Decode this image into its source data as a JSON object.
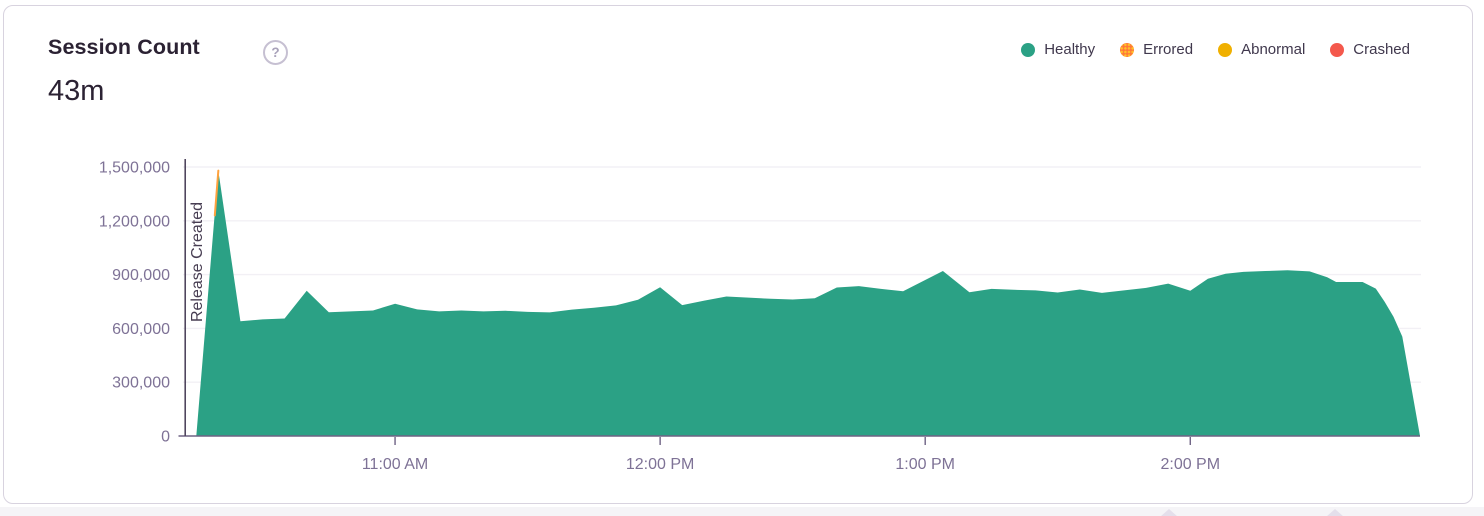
{
  "header": {
    "title": "Session Count",
    "help_label": "?",
    "value": "43m"
  },
  "legend": {
    "items": [
      {
        "label": "Healthy",
        "color": "#2BA185",
        "pattern": "solid"
      },
      {
        "label": "Errored",
        "color": "#FF7738",
        "pattern": "dotted",
        "pattern_dot_color": "#FFC227"
      },
      {
        "label": "Abnormal",
        "color": "#F0B000",
        "pattern": "solid"
      },
      {
        "label": "Crashed",
        "color": "#F4584C",
        "pattern": "solid"
      }
    ]
  },
  "chart_data": {
    "type": "area",
    "title": "Session Count",
    "total": "43m",
    "unit": "sessions",
    "grid": true,
    "legend_position": "top-right",
    "ylim": [
      0,
      1500000
    ],
    "xlim_minutes_after_10am": [
      12,
      292
    ],
    "y_ticks": [
      {
        "value": 0,
        "label": "0"
      },
      {
        "value": 300000,
        "label": "300,000"
      },
      {
        "value": 600000,
        "label": "600,000"
      },
      {
        "value": 900000,
        "label": "900,000"
      },
      {
        "value": 1200000,
        "label": "1,200,000"
      },
      {
        "value": 1500000,
        "label": "1,500,000"
      }
    ],
    "x_ticks": [
      {
        "minutes": 60,
        "label": "11:00 AM"
      },
      {
        "minutes": 120,
        "label": "12:00 PM"
      },
      {
        "minutes": 180,
        "label": "1:00 PM"
      },
      {
        "minutes": 240,
        "label": "2:00 PM"
      }
    ],
    "annotation": {
      "label": "Release Created",
      "minutes": 12.5
    },
    "series": [
      {
        "name": "Healthy",
        "color": "#2BA185",
        "points_min_value": [
          [
            15,
            0
          ],
          [
            20,
            1480000
          ],
          [
            25,
            640000
          ],
          [
            30,
            650000
          ],
          [
            35,
            655000
          ],
          [
            40,
            810000
          ],
          [
            45,
            690000
          ],
          [
            50,
            695000
          ],
          [
            55,
            700000
          ],
          [
            60,
            738000
          ],
          [
            65,
            706000
          ],
          [
            70,
            695000
          ],
          [
            75,
            700000
          ],
          [
            80,
            695000
          ],
          [
            85,
            698000
          ],
          [
            90,
            692000
          ],
          [
            95,
            689000
          ],
          [
            100,
            705000
          ],
          [
            105,
            715000
          ],
          [
            110,
            728000
          ],
          [
            115,
            760000
          ],
          [
            120,
            830000
          ],
          [
            125,
            730000
          ],
          [
            130,
            755000
          ],
          [
            135,
            778000
          ],
          [
            140,
            772000
          ],
          [
            145,
            765000
          ],
          [
            150,
            761000
          ],
          [
            155,
            768000
          ],
          [
            160,
            828000
          ],
          [
            165,
            836000
          ],
          [
            170,
            820000
          ],
          [
            175,
            807000
          ],
          [
            180,
            870000
          ],
          [
            184,
            920000
          ],
          [
            190,
            802000
          ],
          [
            195,
            820000
          ],
          [
            200,
            815000
          ],
          [
            205,
            812000
          ],
          [
            210,
            800000
          ],
          [
            215,
            817000
          ],
          [
            220,
            798000
          ],
          [
            225,
            812000
          ],
          [
            230,
            826000
          ],
          [
            235,
            850000
          ],
          [
            240,
            810000
          ],
          [
            244,
            877000
          ],
          [
            248,
            905000
          ],
          [
            252,
            915000
          ],
          [
            257,
            920000
          ],
          [
            262,
            924000
          ],
          [
            267,
            918000
          ],
          [
            271,
            885000
          ],
          [
            273,
            859000
          ],
          [
            279,
            859000
          ],
          [
            282,
            822000
          ],
          [
            284,
            748000
          ],
          [
            286,
            665000
          ],
          [
            288,
            554000
          ],
          [
            292,
            0
          ]
        ]
      }
    ],
    "spike_errored_accent": {
      "color": "#FFA23E",
      "from": [
        19.2,
        1230000
      ],
      "to": [
        20,
        1480000
      ]
    }
  }
}
